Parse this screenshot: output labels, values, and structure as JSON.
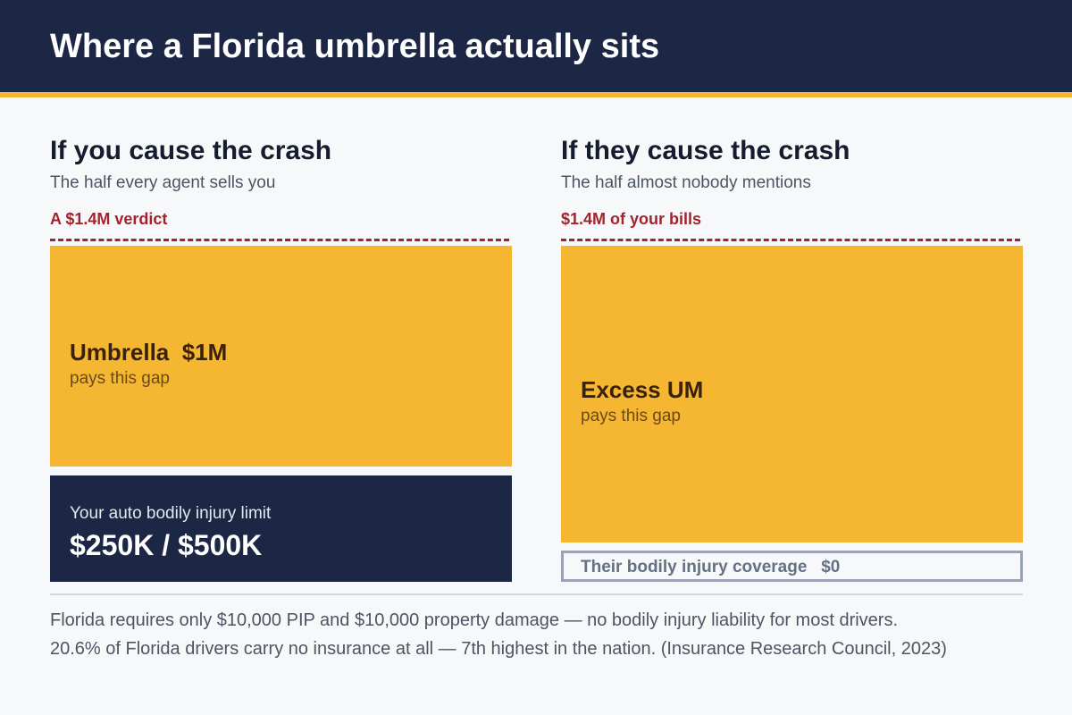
{
  "header": {
    "title": "Where a Florida umbrella actually sits"
  },
  "left": {
    "heading": "If you cause the crash",
    "subheading": "The half every agent sells you",
    "marker": "A $1.4M verdict",
    "gold_label": "Umbrella  $1M",
    "gold_note": "pays this gap",
    "base_label": "Your auto bodily injury limit",
    "base_value": "$250K / $500K"
  },
  "right": {
    "heading": "If they cause the crash",
    "subheading": "The half almost nobody mentions",
    "marker": "$1.4M of your bills",
    "gold_label": "Excess UM",
    "gold_note": "pays this gap",
    "base_label": "Their bodily injury coverage   $0"
  },
  "footer": {
    "line1": "Florida requires only $10,000 PIP and $10,000 property damage — no bodily injury liability for most drivers.",
    "line2": "20.6% of Florida drivers carry no insurance at all — 7th highest in the nation. (Insurance Research Council, 2023)"
  },
  "colors": {
    "navy": "#1b2745",
    "gold": "#f5b731",
    "red": "#a3232d",
    "gray": "#9aa3b3"
  }
}
